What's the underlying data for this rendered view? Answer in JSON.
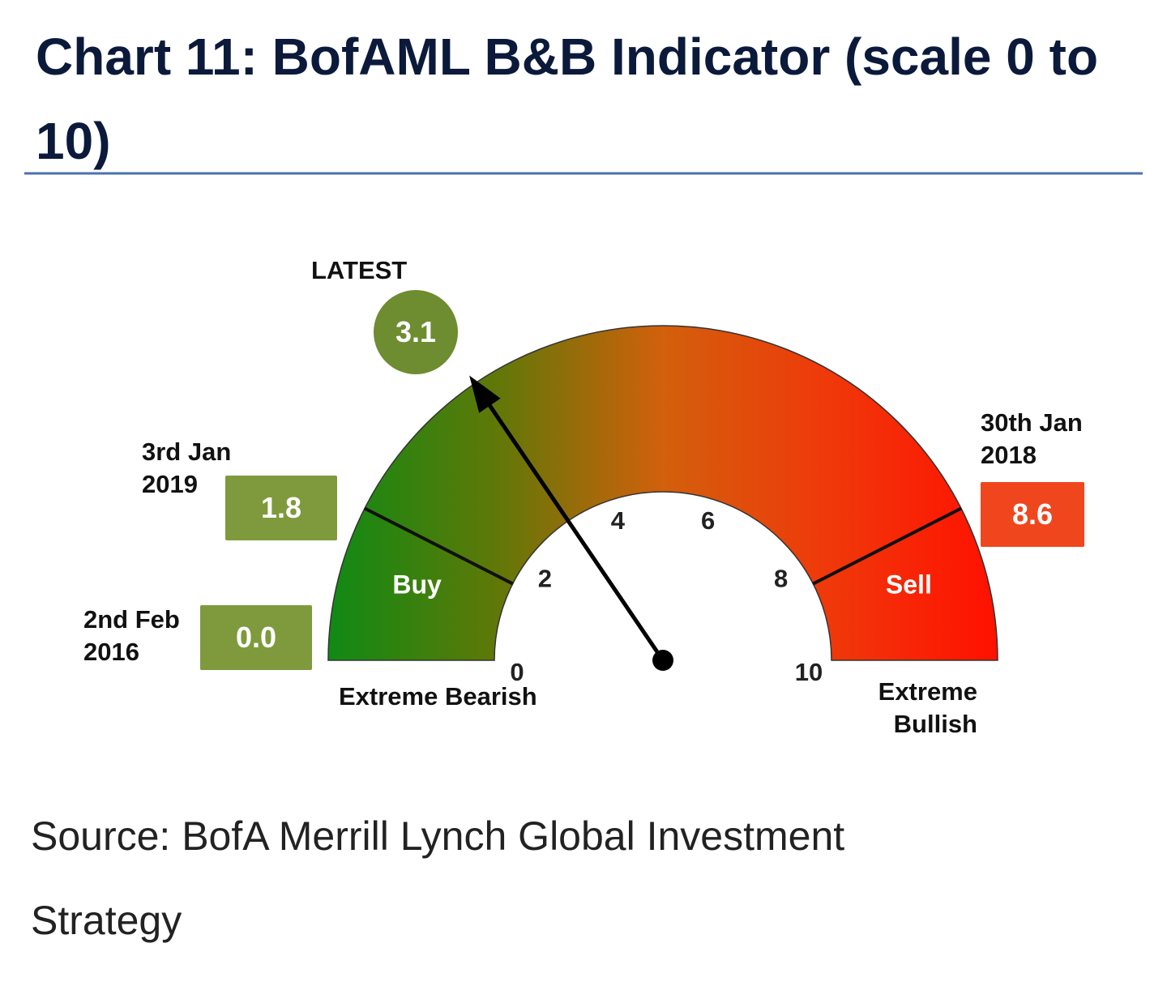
{
  "chart_data": {
    "type": "gauge",
    "title": "Chart 11: BofAML B&B Indicator (scale 0 to 10)",
    "source": "Source: BofA Merrill Lynch Global Investment Strategy",
    "range": [
      0,
      10
    ],
    "ticks": [
      0,
      2,
      4,
      6,
      8,
      10
    ],
    "gradient": [
      "#0f8a14",
      "#5f7808",
      "#d2600c",
      "#f0380a",
      "#ff1000"
    ],
    "zones": [
      {
        "name": "Buy",
        "from": 0,
        "to": 1.5
      },
      {
        "name": "Sell",
        "from": 8.5,
        "to": 10
      }
    ],
    "end_labels": [
      "Extreme Bearish",
      "Extreme Bullish"
    ],
    "markers": [
      {
        "label": "LATEST",
        "value": 3.1,
        "color": "#6e8c30"
      },
      {
        "label": "3rd Jan 2019",
        "value": 1.8,
        "color": "#7e9a3c"
      },
      {
        "label": "2nd Feb 2016",
        "value": 0,
        "value_label": "0.0",
        "color": "#7e9a3c"
      },
      {
        "label": "30th Jan 2018",
        "value": 8.6,
        "color": "#f0461e"
      }
    ]
  }
}
